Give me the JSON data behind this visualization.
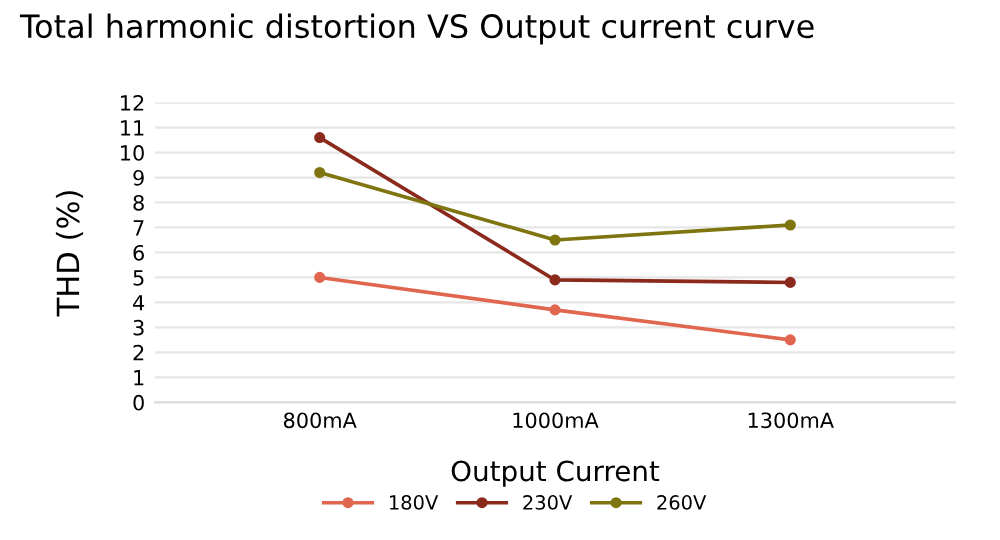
{
  "chart_data": {
    "type": "line",
    "title": "Total harmonic distortion VS Output current curve",
    "xlabel": "Output Current",
    "ylabel": "THD (%)",
    "categories": [
      "800mA",
      "1000mA",
      "1300mA"
    ],
    "series": [
      {
        "name": "180V",
        "color": "#e0664f",
        "values": [
          5.0,
          3.7,
          2.5
        ]
      },
      {
        "name": "230V",
        "color": "#8b2a1c",
        "values": [
          10.6,
          4.9,
          4.8
        ]
      },
      {
        "name": "260V",
        "color": "#7f7510",
        "values": [
          9.2,
          6.5,
          7.1
        ]
      }
    ],
    "ylim": [
      0,
      12
    ],
    "yticks": [
      0,
      1,
      2,
      3,
      4,
      5,
      6,
      7,
      8,
      9,
      10,
      11,
      12
    ],
    "grid": "y",
    "legend": "bottom",
    "marker": "circle",
    "line_style": "solid"
  }
}
